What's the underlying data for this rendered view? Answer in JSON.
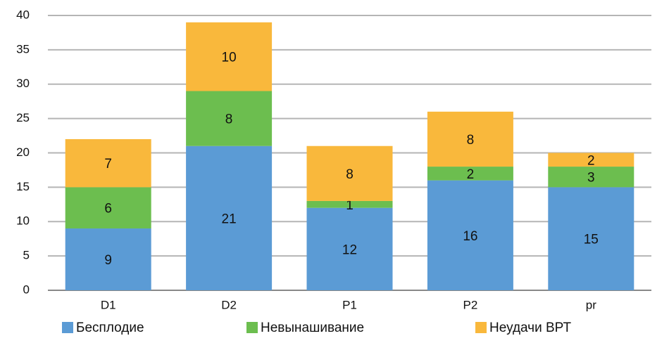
{
  "chart_data": {
    "type": "stacked_bar",
    "categories": [
      "D1",
      "D2",
      "P1",
      "P2",
      "pr"
    ],
    "series": [
      {
        "name": "Бесплодие",
        "color": "#5b9bd5",
        "values": [
          9,
          21,
          12,
          16,
          15
        ]
      },
      {
        "name": "Невынашивание",
        "color": "#6cbe4f",
        "values": [
          6,
          8,
          1,
          2,
          3
        ]
      },
      {
        "name": "Неудачи ВРТ",
        "color": "#f9b83c",
        "values": [
          7,
          10,
          8,
          8,
          2
        ]
      }
    ],
    "ylim": [
      0,
      40
    ],
    "yticks": [
      0,
      5,
      10,
      15,
      20,
      25,
      30,
      35,
      40
    ],
    "grid": true,
    "legend": "bottom"
  }
}
